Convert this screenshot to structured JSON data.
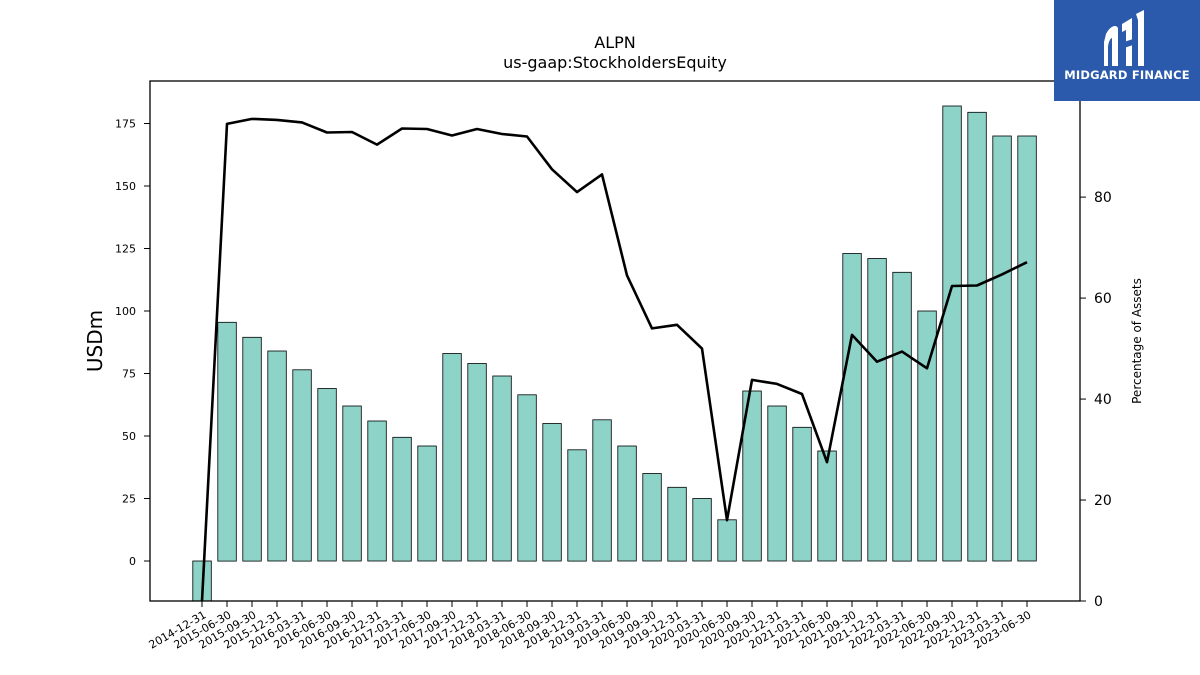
{
  "brand": {
    "name": "MIDGARD FINANCE",
    "color": "#2b5aad",
    "icon": "midgard-logo-icon"
  },
  "chart_data": {
    "type": "bar",
    "title": "ALPN",
    "subtitle": "us-gaap:StockholdersEquity",
    "ylabel": "USDm",
    "y2label": "Percentage of Assets",
    "ylim": [
      -16,
      192
    ],
    "y2lim": [
      0,
      103
    ],
    "yticks": [
      0,
      25,
      50,
      75,
      100,
      125,
      150,
      175
    ],
    "y2ticks": [
      0,
      20,
      40,
      60,
      80
    ],
    "bar_color": "#8dd3c7",
    "line_color": "#000000",
    "categories": [
      "2014-12-31",
      "2015-06-30",
      "2015-09-30",
      "2015-12-31",
      "2016-03-31",
      "2016-06-30",
      "2016-09-30",
      "2016-12-31",
      "2017-03-31",
      "2017-06-30",
      "2017-09-30",
      "2017-12-31",
      "2018-03-31",
      "2018-06-30",
      "2018-09-30",
      "2018-12-31",
      "2019-03-31",
      "2019-06-30",
      "2019-09-30",
      "2019-12-31",
      "2020-03-31",
      "2020-06-30",
      "2020-09-30",
      "2020-12-31",
      "2021-03-31",
      "2021-06-30",
      "2021-09-30",
      "2021-12-31",
      "2022-03-31",
      "2022-06-30",
      "2022-09-30",
      "2022-12-31",
      "2023-03-31",
      "2023-06-30"
    ],
    "series": [
      {
        "type": "bar",
        "axis": "left",
        "values": [
          -16,
          95.5,
          89.5,
          84,
          76.5,
          69,
          62,
          56,
          49.5,
          46,
          83,
          79,
          74,
          66.5,
          55,
          44.5,
          56.5,
          46,
          35,
          29.5,
          25,
          16.5,
          68,
          62,
          53.5,
          44,
          123,
          121,
          115.5,
          100,
          182,
          179.5,
          170,
          170
        ]
      },
      {
        "type": "line",
        "axis": "right",
        "values": [
          -1,
          94.5,
          95.5,
          95.3,
          94.8,
          92.8,
          92.9,
          90.4,
          93.6,
          93.5,
          92.2,
          93.5,
          92.5,
          92,
          85.5,
          81,
          84.5,
          64.5,
          54,
          54.7,
          50,
          16,
          43.8,
          43,
          41,
          27.5,
          52.7,
          47.4,
          49.4,
          46.1,
          62.4,
          62.5,
          64.7,
          67.1
        ]
      }
    ]
  }
}
